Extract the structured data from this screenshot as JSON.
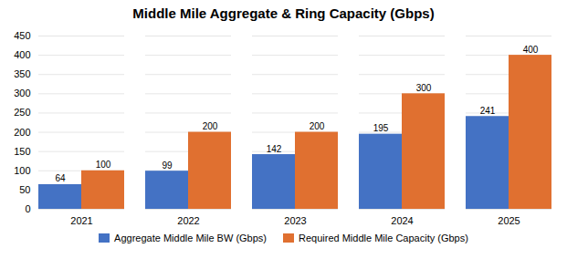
{
  "chart_data": {
    "type": "bar",
    "title": "Middle Mile Aggregate & Ring Capacity (Gbps)",
    "categories": [
      "2021",
      "2022",
      "2023",
      "2024",
      "2025"
    ],
    "series": [
      {
        "name": "Aggregate Middle Mile BW (Gbps)",
        "color": "#4472C4",
        "values": [
          64,
          99,
          142,
          195,
          241
        ]
      },
      {
        "name": "Required Middle Mile Capacity (Gbps)",
        "color": "#E07030",
        "values": [
          100,
          200,
          200,
          300,
          400
        ]
      }
    ],
    "ylim": [
      0,
      450
    ],
    "yticks": [
      0,
      50,
      100,
      150,
      200,
      250,
      300,
      350,
      400,
      450
    ],
    "grid": true,
    "legend": "bottom",
    "data_labels": true
  }
}
